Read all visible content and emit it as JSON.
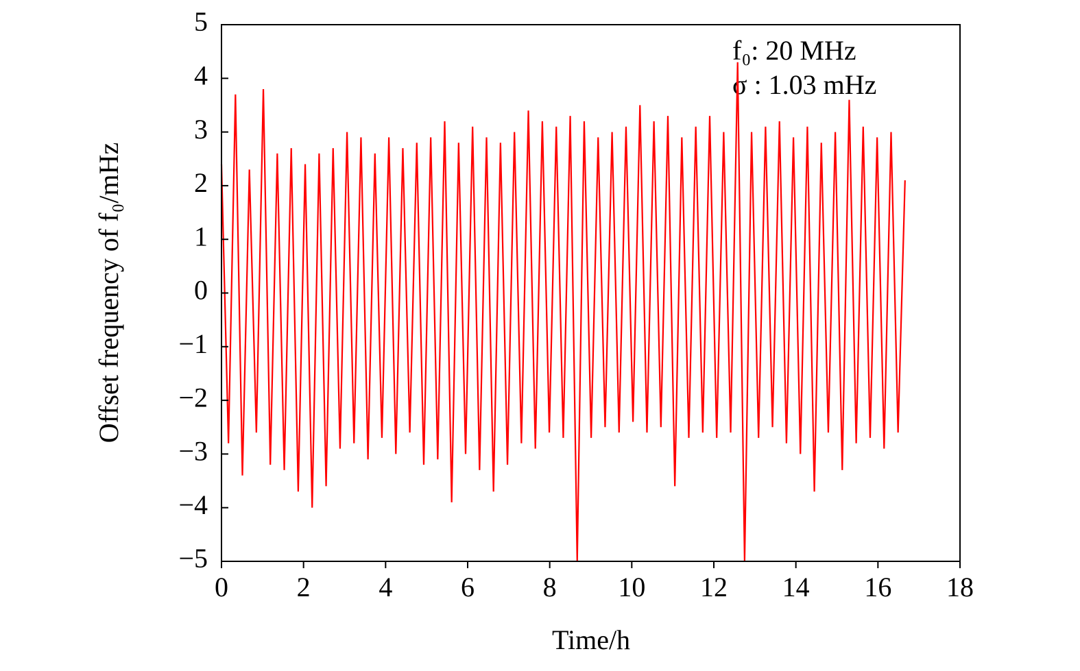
{
  "chart_data": {
    "type": "line",
    "xlabel": "Time/h",
    "ylabel": "Offset frequency of f₀/mHz",
    "annotations": [
      "f₀: 20 MHz",
      "σ : 1.03 mHz"
    ],
    "xlim": [
      0,
      18
    ],
    "xticks": [
      0,
      2,
      4,
      6,
      8,
      10,
      12,
      14,
      16,
      18
    ],
    "ylim": [
      -5,
      5
    ],
    "yticks": [
      {
        "value": -5,
        "label": "−5"
      },
      {
        "value": -4,
        "label": "−4"
      },
      {
        "value": -3,
        "label": "−3"
      },
      {
        "value": -2,
        "label": "−2"
      },
      {
        "value": -1,
        "label": "−1"
      },
      0,
      1,
      2,
      3,
      4,
      5
    ],
    "x": [
      0,
      0.17,
      0.34,
      0.51,
      0.68,
      0.85,
      1.02,
      1.19,
      1.36,
      1.53,
      1.7,
      1.87,
      2.04,
      2.21,
      2.38,
      2.55,
      2.72,
      2.89,
      3.06,
      3.23,
      3.4,
      3.57,
      3.74,
      3.91,
      4.08,
      4.25,
      4.42,
      4.59,
      4.76,
      4.93,
      5.1,
      5.27,
      5.44,
      5.61,
      5.78,
      5.95,
      6.12,
      6.29,
      6.46,
      6.63,
      6.8,
      6.97,
      7.14,
      7.31,
      7.48,
      7.65,
      7.82,
      7.99,
      8.16,
      8.33,
      8.5,
      8.67,
      8.84,
      9.01,
      9.18,
      9.35,
      9.52,
      9.69,
      9.86,
      10.03,
      10.2,
      10.37,
      10.54,
      10.71,
      10.88,
      11.05,
      11.22,
      11.39,
      11.56,
      11.73,
      11.9,
      12.07,
      12.24,
      12.41,
      12.58,
      12.75,
      12.92,
      13.09,
      13.26,
      13.43,
      13.6,
      13.77,
      13.94,
      14.11,
      14.28,
      14.45,
      14.62,
      14.79,
      14.96,
      15.13,
      15.3,
      15.47,
      15.64,
      15.81,
      15.98,
      16.15,
      16.32,
      16.49,
      16.66
    ],
    "series": [
      {
        "color": "#ff0000",
        "values": [
          2.4,
          -2.8,
          3.7,
          -3.4,
          2.3,
          -2.6,
          3.8,
          -3.2,
          2.6,
          -3.3,
          2.7,
          -3.7,
          2.4,
          -4.0,
          2.6,
          -3.6,
          2.7,
          -2.9,
          3.0,
          -2.8,
          2.9,
          -3.1,
          2.6,
          -2.7,
          2.9,
          -3.0,
          2.7,
          -2.6,
          2.8,
          -3.2,
          2.9,
          -3.1,
          3.2,
          -3.9,
          2.8,
          -3.0,
          3.1,
          -3.3,
          2.9,
          -3.7,
          2.8,
          -3.2,
          3.0,
          -2.8,
          3.4,
          -2.9,
          3.2,
          -2.6,
          3.1,
          -2.7,
          3.3,
          -5,
          3.2,
          -2.7,
          2.9,
          -2.5,
          3.0,
          -2.6,
          3.1,
          -2.4,
          3.5,
          -2.6,
          3.2,
          -2.5,
          3.3,
          -3.6,
          2.9,
          -2.7,
          3.1,
          -2.6,
          3.3,
          -2.7,
          3.0,
          -2.6,
          4.3,
          -5,
          3.0,
          -2.7,
          3.1,
          -2.5,
          3.2,
          -2.8,
          2.9,
          -3.0,
          3.1,
          -3.7,
          2.8,
          -2.6,
          3.0,
          -3.3,
          3.6,
          -2.8,
          3.1,
          -2.7,
          2.9,
          -2.9,
          3.0,
          -2.6,
          2.1
        ]
      }
    ]
  }
}
